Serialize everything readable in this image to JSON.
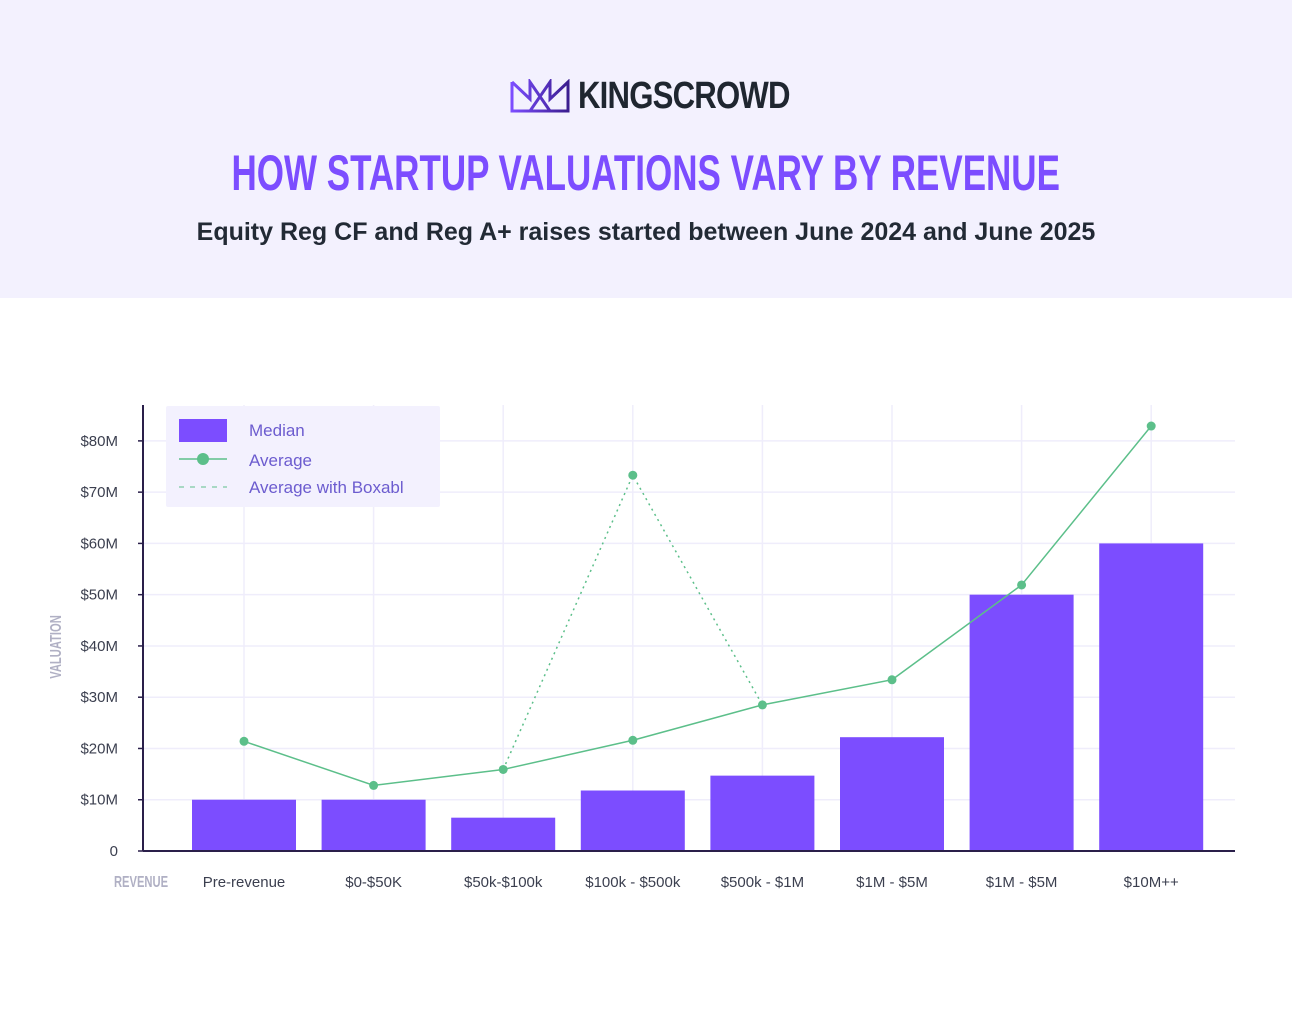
{
  "header": {
    "logo_text": "KINGSCROWD",
    "title": "HOW STARTUP VALUATIONS VARY BY REVENUE",
    "subtitle": "Equity Reg CF and Reg A+ raises started between June 2024 and June 2025"
  },
  "colors": {
    "header_bg": "#f3f1fe",
    "median": "#7c4dff",
    "average": "#5cbf8a",
    "title": "#7c4dff"
  },
  "chart_data": {
    "type": "bar+line",
    "xlabel": "REVENUE",
    "ylabel": "VALUATION",
    "categories": [
      "Pre-revenue",
      "$0-$50K",
      "$50k-$100k",
      "$100k - $500k",
      "$500k - $1M",
      "$1M - $5M",
      "$1M - $5M",
      "$10M++"
    ],
    "ylim": [
      0,
      87
    ],
    "yticks": [
      0,
      10,
      20,
      30,
      40,
      50,
      60,
      70,
      80
    ],
    "ytick_labels": [
      "0",
      "$10M",
      "$20M",
      "$30M",
      "$40M",
      "$50M",
      "$60M",
      "$70M",
      "$80M"
    ],
    "grid": true,
    "legend_position": "top-left",
    "series": [
      {
        "name": "Median",
        "type": "bar",
        "values": [
          10,
          10,
          6.5,
          11.8,
          14.7,
          22.2,
          50,
          60
        ]
      },
      {
        "name": "Average",
        "type": "line",
        "values": [
          21.4,
          12.8,
          15.9,
          21.6,
          28.5,
          33.4,
          51.9,
          82.9
        ]
      },
      {
        "name": "Average with Boxabl",
        "type": "dashed-line",
        "values": [
          null,
          null,
          15.9,
          73.3,
          28.5,
          null,
          null,
          null
        ]
      }
    ]
  }
}
